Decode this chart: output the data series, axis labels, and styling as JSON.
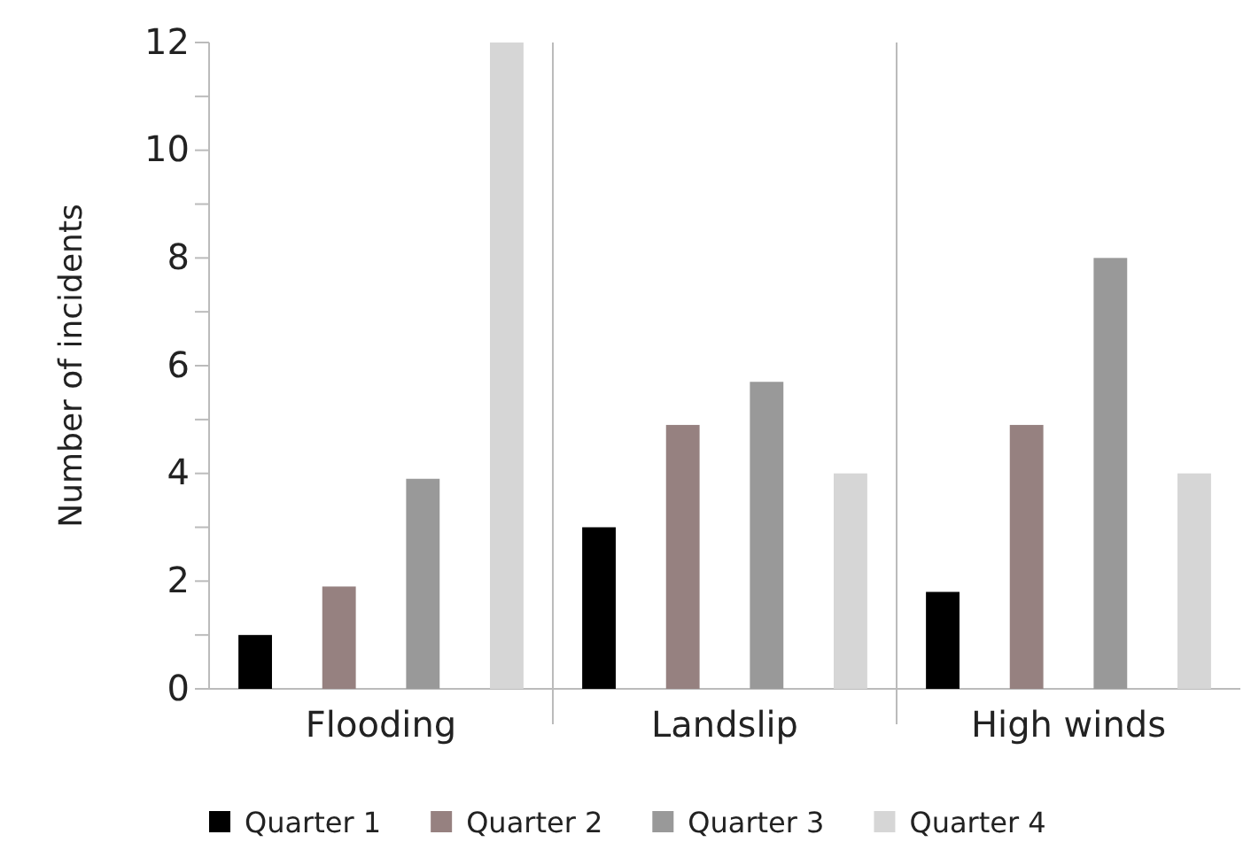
{
  "chart_data": {
    "type": "bar",
    "ylabel": "Number of incidents",
    "categories": [
      "Flooding",
      "Landslip",
      "High winds"
    ],
    "series": [
      {
        "name": "Quarter 1",
        "color": "#000000",
        "values": [
          1,
          3,
          1.8
        ]
      },
      {
        "name": "Quarter 2",
        "color": "#968180",
        "values": [
          1.9,
          4.9,
          4.9
        ]
      },
      {
        "name": "Quarter 3",
        "color": "#999999",
        "values": [
          3.9,
          5.7,
          8
        ]
      },
      {
        "name": "Quarter 4",
        "color": "#d6d6d6",
        "values": [
          12,
          4,
          4
        ]
      }
    ],
    "ylim": [
      0,
      12
    ],
    "yticks": [
      0,
      {
        "value": 1,
        "label": null
      },
      2,
      {
        "value": 3,
        "label": null
      },
      4,
      {
        "value": 5,
        "label": null
      },
      6,
      {
        "value": 7,
        "label": null
      },
      8,
      {
        "value": 9,
        "label": null
      },
      10,
      {
        "value": 11,
        "label": null
      },
      12
    ],
    "grid": false,
    "legend": "bottom"
  }
}
